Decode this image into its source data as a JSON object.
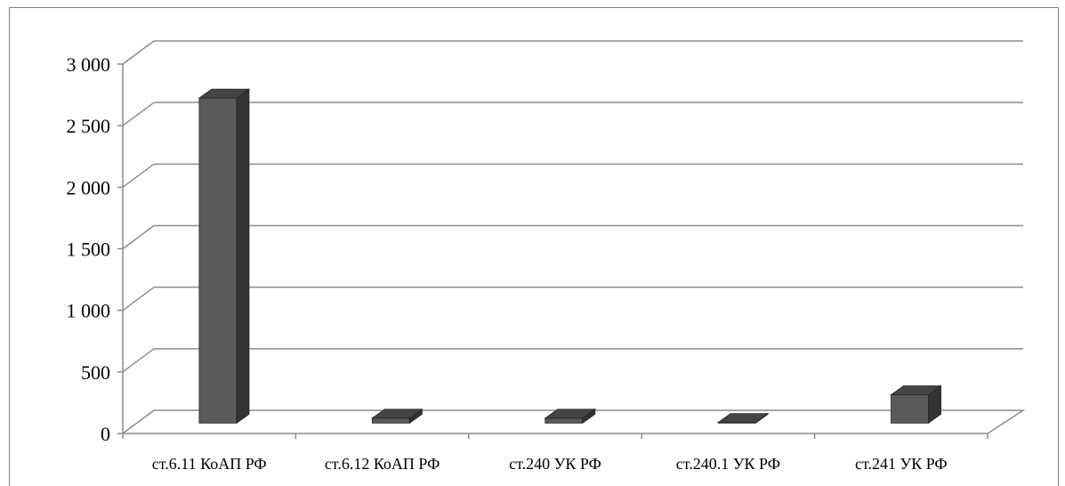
{
  "chart_data": {
    "type": "bar",
    "categories": [
      "ст.6.11 КоАП РФ",
      "ст.6.12 КоАП РФ",
      "ст.240 УК РФ",
      "ст.240.1 УК РФ",
      "ст.241 УК РФ"
    ],
    "values": [
      2640,
      40,
      40,
      5,
      230
    ],
    "yticks": [
      "0",
      "500",
      "1 000",
      "1 500",
      "2 000",
      "2 500",
      "3 000"
    ],
    "ylim": [
      0,
      3000
    ],
    "grid": true,
    "legend": "none",
    "colors": {
      "bar_front": "#5a5a5a",
      "bar_top": "#454545",
      "bar_side": "#333333",
      "grid": "#8c8c8c"
    }
  }
}
